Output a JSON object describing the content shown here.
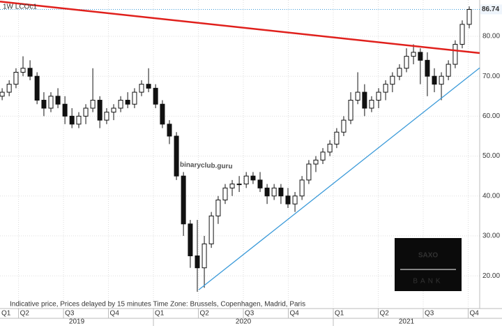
{
  "chart_data": {
    "type": "candlestick",
    "title": "1W   LCOc1",
    "note": "Indicative price, Prices delayed by 15 minutes    Time Zone: Brussels, Copenhagen, Madrid, Paris",
    "watermark": "binaryclub.guru",
    "logo": {
      "top": "SAXO",
      "bottom": "BANK"
    },
    "last_price": 86.74,
    "x": [
      2019.159,
      2019.198,
      2019.236,
      2019.275,
      2019.314,
      2019.353,
      2019.391,
      2019.43,
      2019.469,
      2019.508,
      2019.547,
      2019.585,
      2019.624,
      2019.663,
      2019.702,
      2019.74,
      2019.779,
      2019.818,
      2019.857,
      2019.895,
      2019.934,
      2019.973,
      2020.012,
      2020.05,
      2020.089,
      2020.128,
      2020.167,
      2020.205,
      2020.244,
      2020.283,
      2020.322,
      2020.36,
      2020.399,
      2020.438,
      2020.477,
      2020.516,
      2020.554,
      2020.593,
      2020.632,
      2020.671,
      2020.709,
      2020.748,
      2020.787,
      2020.826,
      2020.864,
      2020.903,
      2020.942,
      2020.981,
      2021.019,
      2021.058,
      2021.097,
      2021.136,
      2021.174,
      2021.213,
      2021.252,
      2021.291,
      2021.329,
      2021.368,
      2021.407,
      2021.446,
      2021.484,
      2021.523,
      2021.562,
      2021.601,
      2021.64,
      2021.678,
      2021.717,
      2021.756
    ],
    "open": [
      65,
      66,
      68,
      71,
      72,
      70,
      64,
      62,
      65,
      63,
      60,
      58,
      60,
      62,
      64,
      59,
      61,
      62,
      64,
      63,
      66,
      68,
      67,
      63,
      58,
      55,
      45,
      33,
      25,
      22,
      28,
      35,
      39,
      42,
      43,
      43,
      45,
      44,
      42,
      40,
      42,
      40,
      38,
      40,
      44,
      48,
      49,
      51,
      53,
      56,
      59,
      64,
      66,
      62,
      64,
      66,
      68,
      70,
      72,
      75,
      76,
      74,
      70,
      68,
      70,
      73,
      78,
      83
    ],
    "high": [
      67,
      69,
      72,
      75,
      74,
      71,
      66,
      66,
      67,
      65,
      62,
      61,
      63,
      72,
      65,
      62,
      63,
      65,
      66,
      67,
      69,
      72,
      68,
      64,
      59,
      56,
      46,
      34,
      34,
      30,
      36,
      40,
      43,
      44,
      45,
      46,
      46,
      46,
      43,
      43,
      43,
      42,
      41,
      45,
      49,
      50,
      52,
      54,
      57,
      60,
      66,
      71,
      68,
      65,
      67,
      69,
      71,
      73,
      77,
      78,
      77,
      76,
      72,
      71,
      74,
      79,
      84,
      87.5
    ],
    "low": [
      64,
      65,
      67,
      70,
      69,
      63,
      60,
      61,
      62,
      58,
      57,
      57,
      58,
      61,
      57,
      58,
      59,
      61,
      62,
      62,
      65,
      66,
      62,
      57,
      53,
      44,
      30,
      22,
      16,
      17,
      27,
      33,
      38,
      40,
      41,
      42,
      43,
      41,
      38,
      39,
      38,
      37,
      36,
      39,
      43,
      46,
      48,
      50,
      52,
      55,
      58,
      63,
      60,
      61,
      62,
      64,
      66,
      69,
      71,
      73,
      68,
      65,
      66,
      64,
      69,
      72,
      77,
      82
    ],
    "close": [
      66,
      68,
      71,
      72,
      70,
      64,
      62,
      65,
      63,
      60,
      58,
      60,
      62,
      64,
      59,
      61,
      62,
      64,
      63,
      66,
      68,
      67,
      63,
      58,
      55,
      45,
      33,
      25,
      22,
      28,
      35,
      39,
      42,
      43,
      43,
      45,
      44,
      42,
      40,
      42,
      40,
      38,
      40,
      44,
      48,
      49,
      51,
      53,
      56,
      59,
      64,
      66,
      62,
      64,
      66,
      68,
      70,
      72,
      75,
      76,
      74,
      70,
      68,
      70,
      73,
      78,
      83,
      86.74
    ],
    "trendlines": [
      {
        "color": "#e0201c",
        "x": [
          2019.147,
          2021.814
        ],
        "y": [
          88.7,
          75.8
        ]
      },
      {
        "color": "#3a9ad9",
        "x": [
          2020.252,
          2021.814
        ],
        "y": [
          16.5,
          72.1
        ]
      }
    ],
    "xlim": [
      2019.147,
      2021.814
    ],
    "ylim": [
      11.8,
      89.1
    ],
    "yticks": [
      {
        "value": 20,
        "label": "20.00"
      },
      {
        "value": 30,
        "label": "30.00"
      },
      {
        "value": 40,
        "label": "40.00"
      },
      {
        "value": 50,
        "label": "50.00"
      },
      {
        "value": 60,
        "label": "60.00"
      },
      {
        "value": 70,
        "label": "70.00"
      },
      {
        "value": 80,
        "label": "80.00"
      }
    ],
    "xticks": [
      {
        "value": 2019.0,
        "label": "Q1"
      },
      {
        "value": 2019.25,
        "label": "Q2"
      },
      {
        "value": 2019.5,
        "label": "Q3"
      },
      {
        "value": 2019.75,
        "label": "Q4"
      },
      {
        "value": 2020.0,
        "label": "Q1"
      },
      {
        "value": 2020.25,
        "label": "Q2"
      },
      {
        "value": 2020.5,
        "label": "Q3"
      },
      {
        "value": 2020.75,
        "label": "Q4"
      },
      {
        "value": 2021.0,
        "label": "Q1"
      },
      {
        "value": 2021.25,
        "label": "Q2"
      },
      {
        "value": 2021.5,
        "label": "Q3"
      },
      {
        "value": 2021.75,
        "label": "Q4"
      }
    ],
    "year_ticks": [
      {
        "value": 2019,
        "label": "2019"
      },
      {
        "value": 2020,
        "label": "2020"
      },
      {
        "value": 2021,
        "label": "2021"
      }
    ],
    "grid": true,
    "up_color": "#ffffff",
    "down_color": "#111111"
  }
}
